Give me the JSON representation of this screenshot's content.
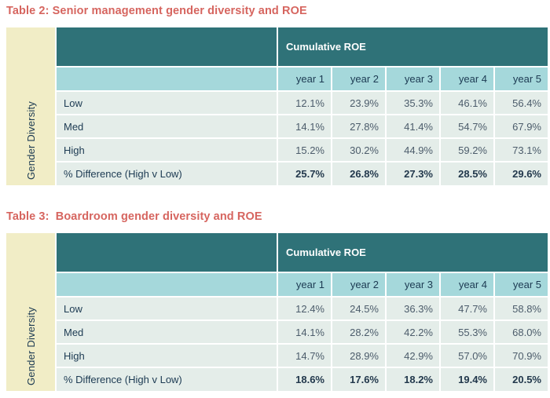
{
  "colors": {
    "header_teal": "#2F7278",
    "year_row_teal": "#A5D8DB",
    "data_row_bg": "#E4EDE9",
    "side_column_cream": "#F1EDC6",
    "title_coral": "#D6655F",
    "navy_text": "#1C3A52",
    "value_text": "#4C5C6B",
    "page_bg": "#FFFFFF"
  },
  "tables": [
    {
      "title": "Table 2: Senior management gender diversity and ROE",
      "side_label": "Gender Diversity",
      "header": "Cumulative ROE",
      "year_headers": [
        "year 1",
        "year 2",
        "year 3",
        "year 4",
        "year 5"
      ],
      "rows": [
        {
          "label": "Low",
          "values": [
            "12.1%",
            "23.9%",
            "35.3%",
            "46.1%",
            "56.4%"
          ]
        },
        {
          "label": "Med",
          "values": [
            "14.1%",
            "27.8%",
            "41.4%",
            "54.7%",
            "67.9%"
          ]
        },
        {
          "label": "High",
          "values": [
            "15.2%",
            "30.2%",
            "44.9%",
            "59.2%",
            "73.1%"
          ]
        },
        {
          "label": "% Difference (High v Low)",
          "values": [
            "25.7%",
            "26.8%",
            "27.3%",
            "28.5%",
            "29.6%"
          ]
        }
      ]
    },
    {
      "title": "Table 3:  Boardroom gender diversity and ROE",
      "side_label": "Gender Diversity",
      "header": "Cumulative ROE",
      "year_headers": [
        "year 1",
        "year 2",
        "year 3",
        "year 4",
        "year 5"
      ],
      "rows": [
        {
          "label": "Low",
          "values": [
            "12.4%",
            "24.5%",
            "36.3%",
            "47.7%",
            "58.8%"
          ]
        },
        {
          "label": "Med",
          "values": [
            "14.1%",
            "28.2%",
            "42.2%",
            "55.3%",
            "68.0%"
          ]
        },
        {
          "label": "High",
          "values": [
            "14.7%",
            "28.9%",
            "42.9%",
            "57.0%",
            "70.9%"
          ]
        },
        {
          "label": "% Difference (High v Low)",
          "values": [
            "18.6%",
            "17.6%",
            "18.2%",
            "19.4%",
            "20.5%"
          ]
        }
      ]
    }
  ],
  "chart_data": [
    {
      "type": "table",
      "title": "Table 2: Senior management gender diversity and ROE",
      "row_axis_label": "Gender Diversity",
      "column_group": "Cumulative ROE",
      "categories": [
        "year 1",
        "year 2",
        "year 3",
        "year 4",
        "year 5"
      ],
      "series": [
        {
          "name": "Low",
          "values": [
            12.1,
            23.9,
            35.3,
            46.1,
            56.4
          ]
        },
        {
          "name": "Med",
          "values": [
            14.1,
            27.8,
            41.4,
            54.7,
            67.9
          ]
        },
        {
          "name": "High",
          "values": [
            15.2,
            30.2,
            44.9,
            59.2,
            73.1
          ]
        },
        {
          "name": "% Difference (High v Low)",
          "values": [
            25.7,
            26.8,
            27.3,
            28.5,
            29.6
          ]
        }
      ]
    },
    {
      "type": "table",
      "title": "Table 3: Boardroom gender diversity and ROE",
      "row_axis_label": "Gender Diversity",
      "column_group": "Cumulative ROE",
      "categories": [
        "year 1",
        "year 2",
        "year 3",
        "year 4",
        "year 5"
      ],
      "series": [
        {
          "name": "Low",
          "values": [
            12.4,
            24.5,
            36.3,
            47.7,
            58.8
          ]
        },
        {
          "name": "Med",
          "values": [
            14.1,
            28.2,
            42.2,
            55.3,
            68.0
          ]
        },
        {
          "name": "High",
          "values": [
            14.7,
            28.9,
            42.9,
            57.0,
            70.9
          ]
        },
        {
          "name": "% Difference (High v Low)",
          "values": [
            18.6,
            17.6,
            18.2,
            19.4,
            20.5
          ]
        }
      ]
    }
  ]
}
